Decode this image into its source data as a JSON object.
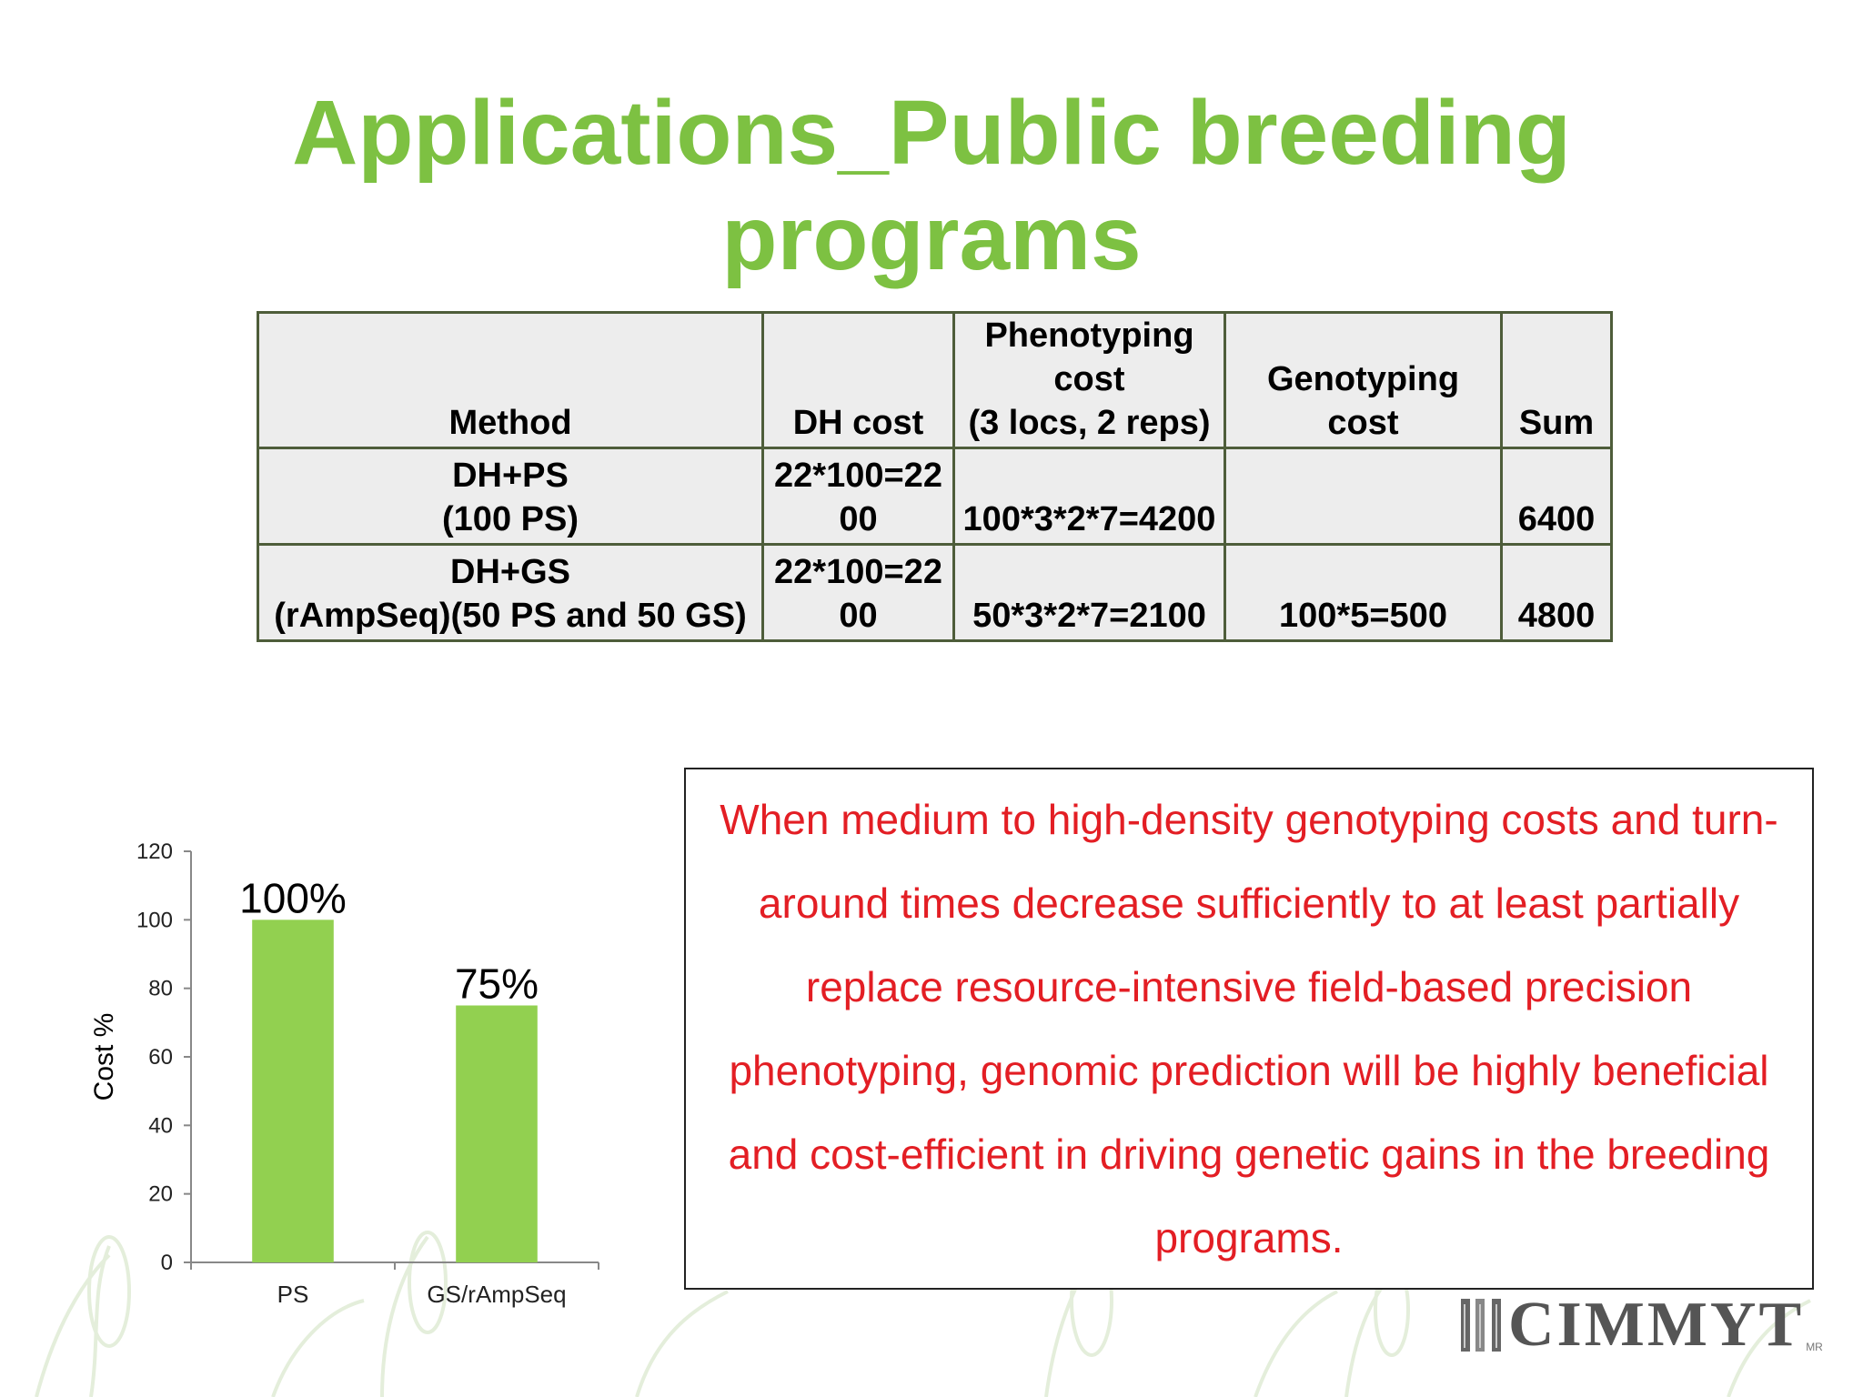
{
  "slide": {
    "title_line1": "Applications_Public breeding",
    "title_line2": "programs",
    "title_color": "#7dc142"
  },
  "cost_table": {
    "headers": [
      "Method",
      "DH cost",
      "Phenotyping\ncost\n(3 locs, 2 reps)",
      "Genotyping\ncost",
      "Sum"
    ],
    "rows": [
      [
        "DH+PS\n(100 PS)",
        "22*100=22\n00",
        "100*3*2*7=4200",
        "",
        "6400"
      ],
      [
        "DH+GS\n(rAmpSeq)(50 PS and 50 GS)",
        "22*100=22\n00",
        "50*3*2*7=2100",
        "100*5=500",
        "4800"
      ]
    ]
  },
  "chart_data": {
    "type": "bar",
    "categories": [
      "PS",
      "GS/rAmpSeq"
    ],
    "values": [
      100,
      75
    ],
    "data_labels": [
      "100%",
      "75%"
    ],
    "title": "",
    "xlabel": "",
    "ylabel": "Cost %",
    "ylim": [
      0,
      120
    ],
    "yticks": [
      0,
      20,
      40,
      60,
      80,
      100,
      120
    ],
    "grid": false,
    "legend": "none",
    "bar_color": "#92d050"
  },
  "note": {
    "text": "When medium to high-density genotyping costs and turn-around times decrease sufficiently to at least partially replace resource-intensive field-based precision phenotyping, genomic prediction will be highly beneficial and cost-efficient in driving genetic gains in the breeding programs.",
    "color": "#e31e24"
  },
  "logo": {
    "text": "CIMMYT",
    "suffix": "MR"
  }
}
